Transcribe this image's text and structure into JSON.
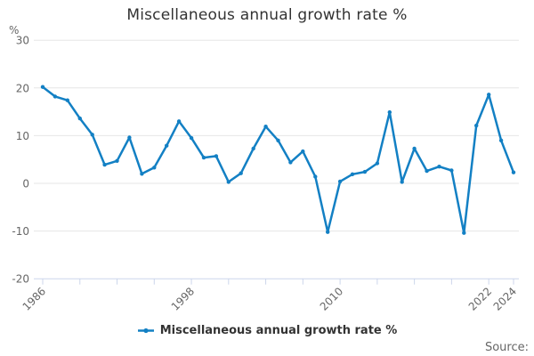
{
  "chart_data": {
    "type": "line",
    "title": "Miscellaneous annual growth rate %",
    "unit_label": "%",
    "xlabel": "",
    "ylabel": "%",
    "ylim": [
      -20,
      30
    ],
    "grid": "horizontal",
    "legend_position": "bottom",
    "y_ticks": [
      30,
      20,
      10,
      0,
      -10,
      -20
    ],
    "x_tick_years": [
      1986,
      1989,
      1992,
      1995,
      1998,
      2001,
      2004,
      2007,
      2010,
      2013,
      2016,
      2019,
      2022,
      2024
    ],
    "x_tick_labels_shown": [
      "1986",
      "1998",
      "2010",
      "2022",
      "2024"
    ],
    "x": [
      1986,
      1987,
      1988,
      1989,
      1990,
      1991,
      1992,
      1993,
      1994,
      1995,
      1996,
      1997,
      1998,
      1999,
      2000,
      2001,
      2002,
      2003,
      2004,
      2005,
      2006,
      2007,
      2008,
      2009,
      2010,
      2011,
      2012,
      2013,
      2014,
      2015,
      2016,
      2017,
      2018,
      2019,
      2020,
      2021,
      2022,
      2023,
      2024
    ],
    "series": [
      {
        "name": "Miscellaneous annual growth rate %",
        "color": "#1380c4",
        "values": [
          20.2,
          18.2,
          17.4,
          13.6,
          10.2,
          3.9,
          4.7,
          9.6,
          2.0,
          3.3,
          7.9,
          13.0,
          9.5,
          5.4,
          5.7,
          0.3,
          2.1,
          7.3,
          11.9,
          9.0,
          4.4,
          6.7,
          1.4,
          -10.2,
          0.4,
          1.9,
          2.4,
          4.2,
          14.9,
          0.3,
          7.3,
          2.6,
          3.5,
          2.7,
          -10.4,
          12.1,
          18.6,
          9.0,
          2.3
        ]
      }
    ]
  },
  "legend": {
    "label": "Miscellaneous annual growth rate %"
  },
  "source": {
    "label": "Source:"
  },
  "colors": {
    "series_line": "#1380c4",
    "gridline": "#e6e6e6",
    "axis_line": "#ccd6eb",
    "tick_label": "#666666",
    "title_text": "#333333"
  }
}
